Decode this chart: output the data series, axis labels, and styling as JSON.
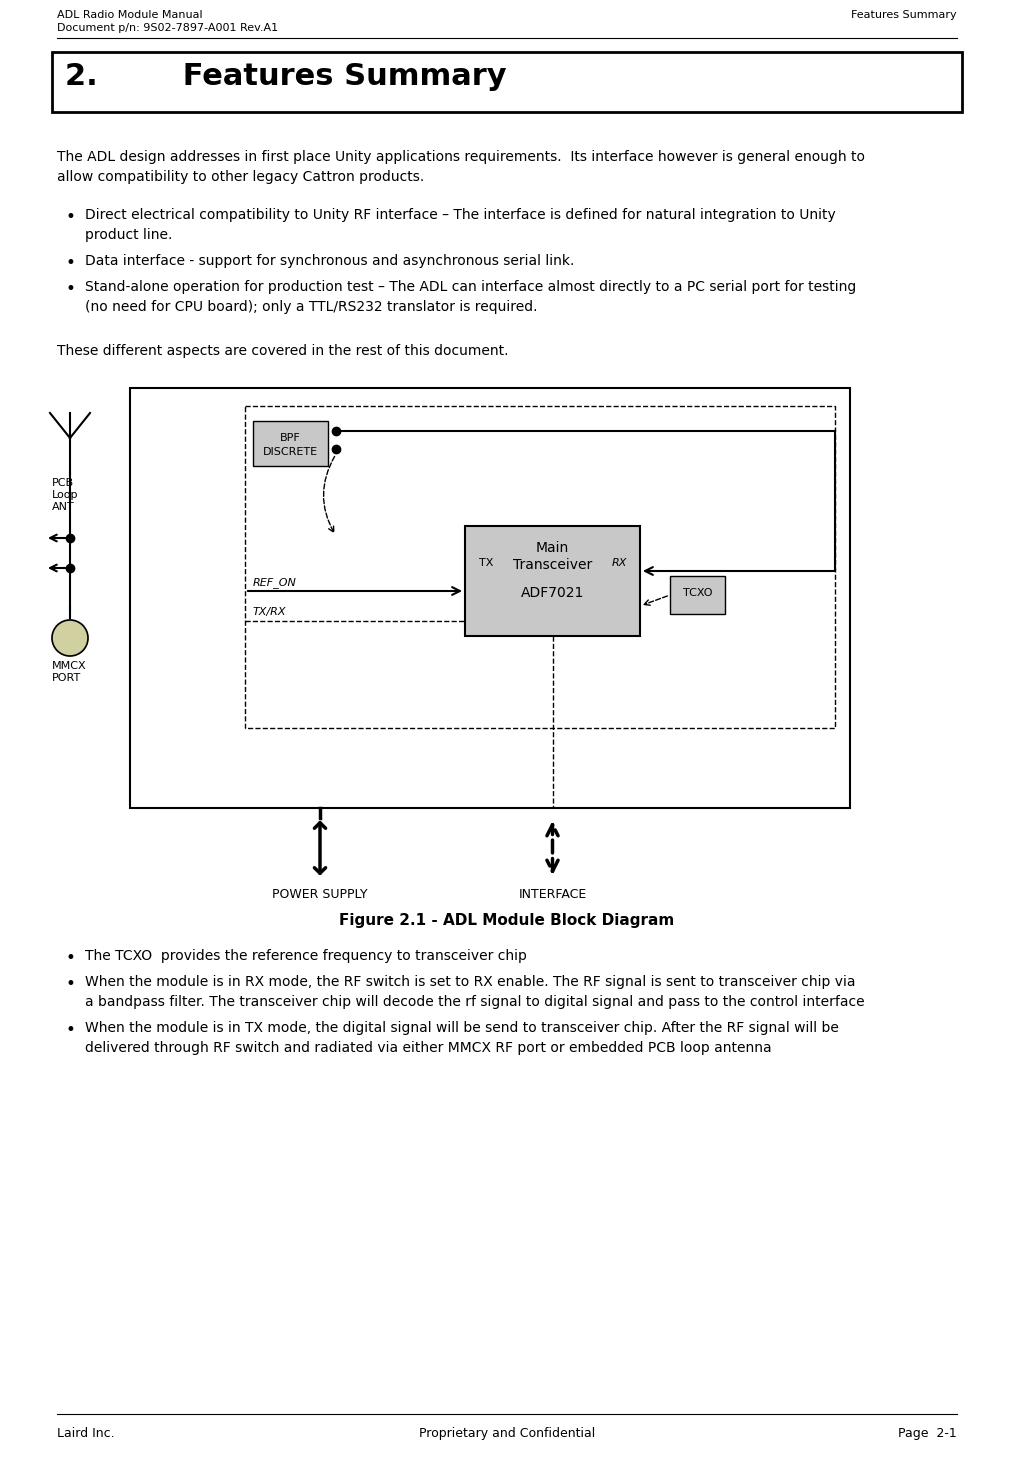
{
  "header_left_line1": "ADL Radio Module Manual",
  "header_left_line2": "Document p/n: 9S02-7897-A001 Rev.A1",
  "header_right": "Features Summary",
  "section_title": "2.        Features Summary",
  "para1_line1": "The ADL design addresses in first place Unity applications requirements.  Its interface however is general enough to",
  "para1_line2": "allow compatibility to other legacy Cattron products.",
  "bullet1_line1": "Direct electrical compatibility to Unity RF interface – The interface is defined for natural integration to Unity",
  "bullet1_line2": "product line.",
  "bullet2": "Data interface - support for synchronous and asynchronous serial link.",
  "bullet3_line1": "Stand-alone operation for production test – The ADL can interface almost directly to a PC serial port for testing",
  "bullet3_line2": "(no need for CPU board); only a TTL/RS232 translator is required.",
  "para2": "These different aspects are covered in the rest of this document.",
  "figure_caption": "Figure 2.1 - ADL Module Block Diagram",
  "post_bullet1": "The TCXO  provides the reference frequency to transceiver chip",
  "post_bullet2_line1": "When the module is in RX mode, the RF switch is set to RX enable. The RF signal is sent to transceiver chip via",
  "post_bullet2_line2": "a bandpass filter. The transceiver chip will decode the rf signal to digital signal and pass to the control interface",
  "post_bullet3_line1": "When the module is in TX mode, the digital signal will be send to transceiver chip. After the RF signal will be",
  "post_bullet3_line2": "delivered through RF switch and radiated via either MMCX RF port or embedded PCB loop antenna",
  "footer_left": "Laird Inc.",
  "footer_center": "Proprietary and Confidential",
  "footer_right": "Page  2-1",
  "bg_color": "#ffffff",
  "gray_box": "#c8c8c8"
}
